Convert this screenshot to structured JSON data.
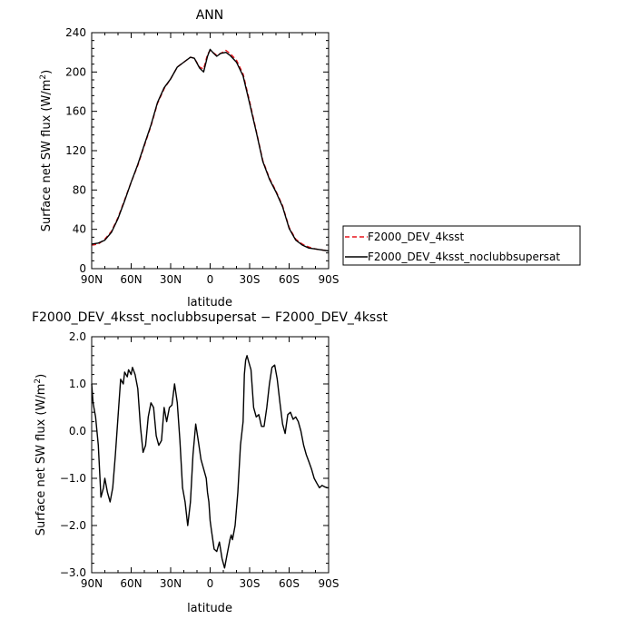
{
  "chart_data": [
    {
      "type": "line",
      "title": "ANN",
      "xlabel": "latitude",
      "ylabel": "Surface net SW flux (W/m²)",
      "ylabel_parts": {
        "text": "Surface net SW flux (W/m",
        "sup": "2",
        "tail": ")"
      },
      "x_ticks": [
        {
          "value": 90,
          "label": "90N"
        },
        {
          "value": 60,
          "label": "60N"
        },
        {
          "value": 30,
          "label": "30N"
        },
        {
          "value": 0,
          "label": "0"
        },
        {
          "value": -30,
          "label": "30S"
        },
        {
          "value": -60,
          "label": "60S"
        },
        {
          "value": -90,
          "label": "90S"
        }
      ],
      "xlim": [
        90,
        -90
      ],
      "ylim": [
        0,
        240
      ],
      "y_ticks": [
        0,
        40,
        80,
        120,
        160,
        200,
        240
      ],
      "y_tick_labels": [
        "0",
        "40",
        "80",
        "120",
        "160",
        "200",
        "240"
      ],
      "x": [
        90,
        85,
        80,
        75,
        70,
        65,
        60,
        55,
        50,
        45,
        40,
        35,
        30,
        25,
        20,
        15,
        12,
        8,
        5,
        2,
        0,
        -2,
        -5,
        -8,
        -12,
        -15,
        -20,
        -25,
        -30,
        -35,
        -40,
        -45,
        -50,
        -55,
        -60,
        -65,
        -70,
        -75,
        -80,
        -85,
        -90
      ],
      "series": [
        {
          "name": "F2000_DEV_4ksst",
          "color": "#e8141c",
          "dash": true,
          "values": [
            24,
            25,
            30,
            38,
            52,
            70,
            88,
            105,
            125,
            145,
            168,
            183,
            193,
            205,
            210,
            215,
            214,
            205,
            203,
            218,
            222,
            220,
            217,
            219,
            222,
            219,
            212,
            198,
            170,
            140,
            110,
            92,
            79,
            64,
            42,
            30,
            25,
            22,
            20,
            19,
            18
          ]
        },
        {
          "name": "F2000_DEV_4ksst_noclubbsupersat",
          "color": "#000000",
          "dash": false,
          "values": [
            25,
            26,
            29,
            37,
            51,
            69,
            88,
            106,
            126,
            146,
            169,
            184,
            193,
            205,
            210,
            215,
            214,
            204,
            200,
            216,
            223,
            220,
            216,
            219,
            220,
            217,
            210,
            196,
            168,
            139,
            109,
            91,
            78,
            63,
            41,
            29,
            24,
            21,
            20,
            19,
            18
          ]
        }
      ],
      "legend": "right"
    },
    {
      "type": "line",
      "title": "F2000_DEV_4ksst_noclubbsupersat − F2000_DEV_4ksst",
      "xlabel": "latitude",
      "ylabel": "Surface net SW flux (W/m²)",
      "ylabel_parts": {
        "text": "Surface net SW flux (W/m",
        "sup": "2",
        "tail": ")"
      },
      "x_ticks": [
        {
          "value": 90,
          "label": "90N"
        },
        {
          "value": 60,
          "label": "60N"
        },
        {
          "value": 30,
          "label": "30N"
        },
        {
          "value": 0,
          "label": "0"
        },
        {
          "value": -30,
          "label": "30S"
        },
        {
          "value": -60,
          "label": "60S"
        },
        {
          "value": -90,
          "label": "90S"
        }
      ],
      "xlim": [
        90,
        -90
      ],
      "ylim": [
        -3.0,
        2.0
      ],
      "y_ticks": [
        -3.0,
        -2.0,
        -1.0,
        0.0,
        1.0,
        2.0
      ],
      "y_tick_labels": [
        "−3.0",
        "−2.0",
        "−1.0",
        "0.0",
        "1.0",
        "2.0"
      ],
      "x": [
        90,
        89,
        87,
        85,
        83,
        81,
        80,
        78,
        76,
        74,
        72,
        70,
        68,
        66,
        65,
        63,
        62,
        60,
        59,
        57,
        55,
        53,
        51,
        49,
        47,
        45,
        43,
        41,
        39,
        37,
        35,
        33,
        31,
        29,
        27,
        25,
        23,
        21,
        19,
        17,
        15,
        13,
        11,
        9,
        7,
        5,
        3,
        2,
        1,
        0,
        -1,
        -2,
        -3,
        -5,
        -7,
        -9,
        -11,
        -13,
        -15,
        -16,
        -17,
        -19,
        -21,
        -23,
        -25,
        -26,
        -27,
        -28,
        -29,
        -31,
        -33,
        -35,
        -37,
        -39,
        -41,
        -43,
        -45,
        -47,
        -49,
        -51,
        -53,
        -55,
        -57,
        -59,
        -61,
        -63,
        -65,
        -67,
        -69,
        -71,
        -73,
        -75,
        -77,
        -79,
        -81,
        -83,
        -85,
        -87,
        -89,
        -90
      ],
      "series": [
        {
          "name": "",
          "color": "#000000",
          "dash": false,
          "values": [
            1.0,
            0.6,
            0.3,
            -0.3,
            -1.4,
            -1.2,
            -1.0,
            -1.3,
            -1.5,
            -1.2,
            -0.5,
            0.3,
            1.1,
            1.0,
            1.25,
            1.15,
            1.3,
            1.2,
            1.35,
            1.2,
            0.9,
            0.1,
            -0.45,
            -0.3,
            0.3,
            0.6,
            0.5,
            -0.1,
            -0.3,
            -0.2,
            0.5,
            0.2,
            0.5,
            0.55,
            1.0,
            0.6,
            -0.2,
            -1.2,
            -1.5,
            -2.0,
            -1.5,
            -0.5,
            0.15,
            -0.2,
            -0.6,
            -0.8,
            -1.0,
            -1.3,
            -1.5,
            -1.9,
            -2.1,
            -2.3,
            -2.5,
            -2.55,
            -2.35,
            -2.7,
            -2.9,
            -2.6,
            -2.3,
            -2.2,
            -2.3,
            -2.0,
            -1.3,
            -0.3,
            0.2,
            1.2,
            1.5,
            1.6,
            1.5,
            1.3,
            0.5,
            0.3,
            0.35,
            0.1,
            0.1,
            0.5,
            1.0,
            1.35,
            1.4,
            1.1,
            0.6,
            0.15,
            -0.05,
            0.35,
            0.4,
            0.25,
            0.3,
            0.2,
            0.0,
            -0.3,
            -0.5,
            -0.65,
            -0.8,
            -1.0,
            -1.1,
            -1.2,
            -1.15,
            -1.18,
            -1.2,
            -1.2
          ]
        }
      ]
    }
  ]
}
